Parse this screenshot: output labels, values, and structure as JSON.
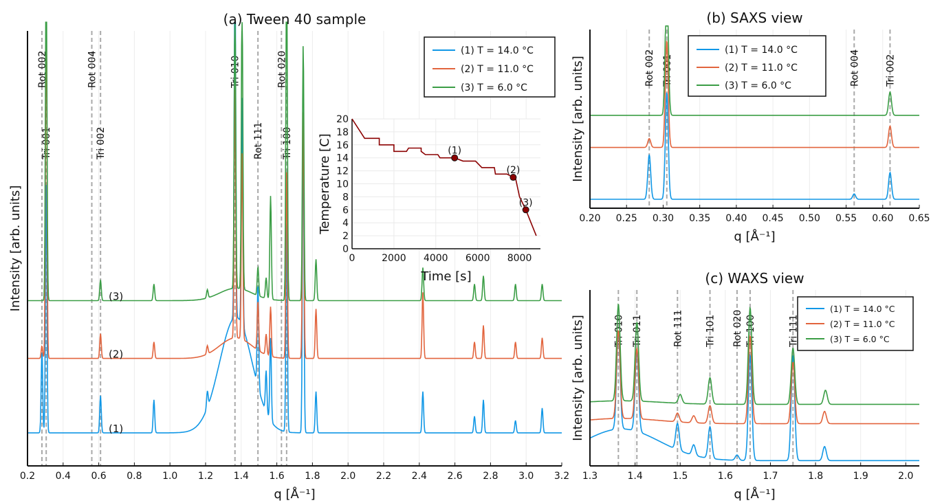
{
  "colors": {
    "s1": "#1097e6",
    "s2": "#e2643d",
    "s3": "#3a9d45",
    "ref": "#a9a9a9",
    "temp": "#8b0000"
  },
  "chart_data": [
    {
      "type": "line",
      "title": "(a) Tween 40 sample",
      "xlabel": "q [Å⁻¹]",
      "ylabel": "Intensity [arb. units]",
      "xlim": [
        0.2,
        3.2
      ],
      "xticks": [
        "0.2",
        "0.4",
        "0.6",
        "0.8",
        "1.0",
        "1.2",
        "1.4",
        "1.6",
        "1.8",
        "2.0",
        "2.2",
        "2.4",
        "2.6",
        "2.8",
        "3.0",
        "3.2"
      ],
      "grid": true,
      "legend": {
        "position": "top-right",
        "entries": [
          "(1) T = 14.0 °C",
          "(2) T = 11.0 °C",
          "(3) T = 6.0 °C"
        ]
      },
      "curve_labels": [
        "(1)",
        "(2)",
        "(3)"
      ],
      "reference_lines": [
        {
          "q": 0.281,
          "label": "Rot 002"
        },
        {
          "q": 0.305,
          "label": "Tri 001"
        },
        {
          "q": 0.561,
          "label": "Rot 004"
        },
        {
          "q": 0.61,
          "label": "Tri 002"
        },
        {
          "q": 1.365,
          "label": "Tri 010"
        },
        {
          "q": 1.494,
          "label": "Rot 111"
        },
        {
          "q": 1.626,
          "label": "Rot 020"
        },
        {
          "q": 1.655,
          "label": "Tri 100"
        }
      ],
      "series": [
        {
          "name": "(1) T = 14.0 °C",
          "baseline": 0.08,
          "peaks": [
            [
              0.281,
              0.2
            ],
            [
              0.305,
              0.6
            ],
            [
              0.61,
              0.09
            ],
            [
              0.91,
              0.08
            ],
            [
              1.21,
              0.04
            ],
            [
              1.365,
              0.85
            ],
            [
              1.405,
              0.55
            ],
            [
              1.494,
              0.25
            ],
            [
              1.54,
              0.1
            ],
            [
              1.565,
              0.2
            ],
            [
              1.655,
              0.5
            ],
            [
              1.748,
              0.75
            ],
            [
              1.82,
              0.1
            ],
            [
              2.42,
              0.1
            ],
            [
              2.71,
              0.04
            ],
            [
              2.76,
              0.08
            ],
            [
              2.94,
              0.03
            ],
            [
              3.09,
              0.06
            ]
          ],
          "hump": {
            "center": 1.37,
            "height": 0.28,
            "width": 0.13
          }
        },
        {
          "name": "(2) T = 11.0 °C",
          "baseline": 0.26,
          "peaks": [
            [
              0.281,
              0.03
            ],
            [
              0.305,
              0.85
            ],
            [
              0.61,
              0.06
            ],
            [
              0.91,
              0.04
            ],
            [
              1.21,
              0.02
            ],
            [
              1.365,
              0.6
            ],
            [
              1.405,
              0.45
            ],
            [
              1.494,
              0.12
            ],
            [
              1.54,
              0.05
            ],
            [
              1.565,
              0.12
            ],
            [
              1.655,
              0.45
            ],
            [
              1.748,
              0.6
            ],
            [
              1.82,
              0.12
            ],
            [
              2.42,
              0.16
            ],
            [
              2.71,
              0.04
            ],
            [
              2.76,
              0.08
            ],
            [
              2.94,
              0.04
            ],
            [
              3.09,
              0.05
            ]
          ],
          "hump": {
            "center": 1.37,
            "height": 0.05,
            "width": 0.13
          }
        },
        {
          "name": "(3) T = 6.0 °C",
          "baseline": 0.4,
          "peaks": [
            [
              0.305,
              0.85
            ],
            [
              0.61,
              0.05
            ],
            [
              0.91,
              0.04
            ],
            [
              1.21,
              0.02
            ],
            [
              1.365,
              0.7
            ],
            [
              1.405,
              0.7
            ],
            [
              1.494,
              0.07
            ],
            [
              1.54,
              0.05
            ],
            [
              1.565,
              0.25
            ],
            [
              1.655,
              0.85
            ],
            [
              1.748,
              0.62
            ],
            [
              1.82,
              0.1
            ],
            [
              2.42,
              0.08
            ],
            [
              2.71,
              0.04
            ],
            [
              2.76,
              0.06
            ],
            [
              2.94,
              0.04
            ],
            [
              3.09,
              0.04
            ]
          ],
          "hump": {
            "center": 1.37,
            "height": 0.03,
            "width": 0.13
          }
        }
      ]
    },
    {
      "type": "line",
      "title": "",
      "xlabel": "Time [s]",
      "ylabel": "Temperature [C]",
      "xlim": [
        0,
        9000
      ],
      "ylim": [
        0,
        20
      ],
      "xticks": [
        "0",
        "2000",
        "4000",
        "6000",
        "8000"
      ],
      "yticks": [
        "0",
        "2",
        "4",
        "6",
        "8",
        "10",
        "12",
        "14",
        "16",
        "18",
        "20"
      ],
      "grid": true,
      "profile": [
        [
          0,
          20
        ],
        [
          600,
          17
        ],
        [
          1300,
          17
        ],
        [
          1300,
          16
        ],
        [
          2000,
          16
        ],
        [
          2000,
          15
        ],
        [
          2600,
          15
        ],
        [
          2700,
          15.5
        ],
        [
          3300,
          15.5
        ],
        [
          3300,
          15
        ],
        [
          3500,
          14.5
        ],
        [
          4100,
          14.5
        ],
        [
          4200,
          14
        ],
        [
          4900,
          14
        ],
        [
          5300,
          13.5
        ],
        [
          5900,
          13.5
        ],
        [
          6200,
          12.5
        ],
        [
          6800,
          12.5
        ],
        [
          6850,
          11.5
        ],
        [
          7400,
          11.5
        ],
        [
          7700,
          11
        ],
        [
          7800,
          11
        ],
        [
          8000,
          8
        ],
        [
          8300,
          6
        ],
        [
          8800,
          2
        ]
      ],
      "markers": [
        {
          "label": "(1)",
          "t": 4900,
          "T": 14
        },
        {
          "label": "(2)",
          "t": 7700,
          "T": 11
        },
        {
          "label": "(3)",
          "t": 8300,
          "T": 6
        }
      ]
    },
    {
      "type": "line",
      "title": "(b) SAXS view",
      "xlabel": "q [Å⁻¹]",
      "ylabel": "Intensity  [arb. units]",
      "xlim": [
        0.2,
        0.65
      ],
      "xticks": [
        "0.20",
        "0.25",
        "0.30",
        "0.35",
        "0.40",
        "0.45",
        "0.50",
        "0.55",
        "0.60",
        "0.65"
      ],
      "grid": true,
      "legend": {
        "position": "top-left",
        "entries": [
          "(1) T = 14.0 °C",
          "(2) T = 11.0 °C",
          "(3) T = 6.0 °C"
        ]
      },
      "reference_lines": [
        {
          "q": 0.281,
          "label": "Rot 002"
        },
        {
          "q": 0.305,
          "label": "Tri 001"
        },
        {
          "q": 0.561,
          "label": "Rot 004"
        },
        {
          "q": 0.61,
          "label": "Tri 002"
        }
      ],
      "series": [
        {
          "name": "(1) T = 14.0 °C",
          "baseline": 0.05,
          "peaks": [
            [
              0.281,
              0.25
            ],
            [
              0.305,
              0.6
            ],
            [
              0.561,
              0.03
            ],
            [
              0.61,
              0.15
            ]
          ]
        },
        {
          "name": "(2) T = 11.0 °C",
          "baseline": 0.34,
          "peaks": [
            [
              0.281,
              0.05
            ],
            [
              0.305,
              0.6
            ],
            [
              0.61,
              0.12
            ]
          ]
        },
        {
          "name": "(3) T = 6.0 °C",
          "baseline": 0.52,
          "peaks": [
            [
              0.305,
              0.8
            ],
            [
              0.61,
              0.13
            ]
          ]
        }
      ]
    },
    {
      "type": "line",
      "title": "(c) WAXS view",
      "xlabel": "q [Å⁻¹]",
      "ylabel": "Intensity  [arb. units]",
      "xlim": [
        1.3,
        2.03
      ],
      "xticks": [
        "1.3",
        "1.4",
        "1.5",
        "1.6",
        "1.7",
        "1.8",
        "1.9",
        "2.0"
      ],
      "grid": true,
      "legend": {
        "position": "top-right",
        "entries": [
          "(1) T = 14.0 °C",
          "(2) T = 11.0 °C",
          "(3) T = 6.0 °C"
        ]
      },
      "reference_lines": [
        {
          "q": 1.363,
          "label": "Tri 010"
        },
        {
          "q": 1.404,
          "label": "Tri 011"
        },
        {
          "q": 1.494,
          "label": "Rot 111"
        },
        {
          "q": 1.566,
          "label": "Tri 101"
        },
        {
          "q": 1.626,
          "label": "Rot 020"
        },
        {
          "q": 1.655,
          "label": "Tri 100"
        },
        {
          "q": 1.75,
          "label": "Tri 111"
        }
      ],
      "series": [
        {
          "name": "(1) T = 14.0 °C",
          "baseline": 0.03,
          "peaks": [
            [
              1.363,
              0.55
            ],
            [
              1.404,
              0.45
            ],
            [
              1.494,
              0.15
            ],
            [
              1.53,
              0.06
            ],
            [
              1.566,
              0.18
            ],
            [
              1.626,
              0.03
            ],
            [
              1.655,
              0.6
            ],
            [
              1.75,
              0.6
            ],
            [
              1.82,
              0.08
            ]
          ],
          "hump": {
            "center": 1.37,
            "height": 0.18,
            "width": 0.12
          }
        },
        {
          "name": "(2) T = 11.0 °C",
          "baseline": 0.24,
          "peaks": [
            [
              1.363,
              0.5
            ],
            [
              1.404,
              0.4
            ],
            [
              1.494,
              0.05
            ],
            [
              1.53,
              0.04
            ],
            [
              1.566,
              0.1
            ],
            [
              1.655,
              0.5
            ],
            [
              1.75,
              0.35
            ],
            [
              1.82,
              0.07
            ]
          ],
          "hump": {
            "center": 1.37,
            "height": 0.03,
            "width": 0.12
          }
        },
        {
          "name": "(3) T = 6.0 °C",
          "baseline": 0.35,
          "peaks": [
            [
              1.363,
              0.55
            ],
            [
              1.404,
              0.45
            ],
            [
              1.5,
              0.05
            ],
            [
              1.566,
              0.15
            ],
            [
              1.655,
              0.55
            ],
            [
              1.75,
              0.32
            ],
            [
              1.822,
              0.08
            ]
          ],
          "hump": {
            "center": 1.37,
            "height": 0.02,
            "width": 0.12
          }
        }
      ]
    }
  ]
}
